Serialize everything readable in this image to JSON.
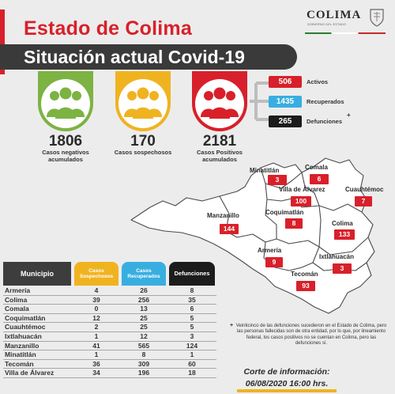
{
  "header": {
    "title": "Estado de Colima",
    "subtitle": "Situación actual Covid-19",
    "logo_text": "COLIMA",
    "logo_subtext": "GOBIERNO DEL ESTADO"
  },
  "summary": {
    "negativos": {
      "value": "1806",
      "label_line1": "Casos negativos",
      "label_line2": "acumulados",
      "color": "#7cb342"
    },
    "sospechosos": {
      "value": "170",
      "label_line1": "Casos sospechosos",
      "label_line2": "",
      "color": "#f0b320"
    },
    "positivos": {
      "value": "2181",
      "label_line1": "Casos Positivos",
      "label_line2": "acumulados",
      "color": "#d8202a"
    }
  },
  "breakdown": [
    {
      "value": "506",
      "label": "Activos",
      "color": "#d8202a"
    },
    {
      "value": "1435",
      "label": "Recuperados",
      "color": "#38aee0"
    },
    {
      "value": "265",
      "label": "Defunciones",
      "color": "#1c1c1c"
    }
  ],
  "breakdown_plus": "+",
  "map": {
    "municipios": [
      {
        "name": "Minatitlán",
        "value": "3"
      },
      {
        "name": "Comala",
        "value": "6"
      },
      {
        "name": "Villa de Álvarez",
        "value": "100"
      },
      {
        "name": "Cuauhtémoc",
        "value": "7"
      },
      {
        "name": "Manzanillo",
        "value": "144"
      },
      {
        "name": "Coquimatlán",
        "value": "8"
      },
      {
        "name": "Colima",
        "value": "133"
      },
      {
        "name": "Armería",
        "value": "9"
      },
      {
        "name": "Ixtlahuacán",
        "value": "3"
      },
      {
        "name": "Tecomán",
        "value": "93"
      }
    ]
  },
  "table": {
    "headers": {
      "municipio": "Municipio",
      "sospechosos_1": "Casos",
      "sospechosos_2": "Sospechosos",
      "recuperados_1": "Casos",
      "recuperados_2": "Recuperados",
      "defunciones": "Defunciones"
    },
    "rows": [
      {
        "municipio": "Armería",
        "sospechosos": "4",
        "recuperados": "26",
        "defunciones": "8"
      },
      {
        "municipio": "Colima",
        "sospechosos": "39",
        "recuperados": "256",
        "defunciones": "35"
      },
      {
        "municipio": "Comala",
        "sospechosos": "0",
        "recuperados": "13",
        "defunciones": "6"
      },
      {
        "municipio": "Coquimatlán",
        "sospechosos": "12",
        "recuperados": "25",
        "defunciones": "5"
      },
      {
        "municipio": "Cuauhtémoc",
        "sospechosos": "2",
        "recuperados": "25",
        "defunciones": "5"
      },
      {
        "municipio": "Ixtlahuacán",
        "sospechosos": "1",
        "recuperados": "12",
        "defunciones": "3"
      },
      {
        "municipio": "Manzanillo",
        "sospechosos": "41",
        "recuperados": "565",
        "defunciones": "124"
      },
      {
        "municipio": "Minatitlán",
        "sospechosos": "1",
        "recuperados": "8",
        "defunciones": "1"
      },
      {
        "municipio": "Tecomán",
        "sospechosos": "36",
        "recuperados": "309",
        "defunciones": "60"
      },
      {
        "municipio": "Villa de Álvarez",
        "sospechosos": "34",
        "recuperados": "196",
        "defunciones": "18"
      }
    ]
  },
  "note": {
    "plus": "+",
    "text": "Veinticinco de las defunciones sucedieron en el Estado de Colima, pero las personas fallecidas son de otra entidad, por lo que, por lineamiento federal, los casos positivos no se cuentan en Colima, pero las defunciones sí."
  },
  "cutoff": {
    "line1": "Corte de información:",
    "line2": "06/08/2020 16:00 hrs."
  }
}
